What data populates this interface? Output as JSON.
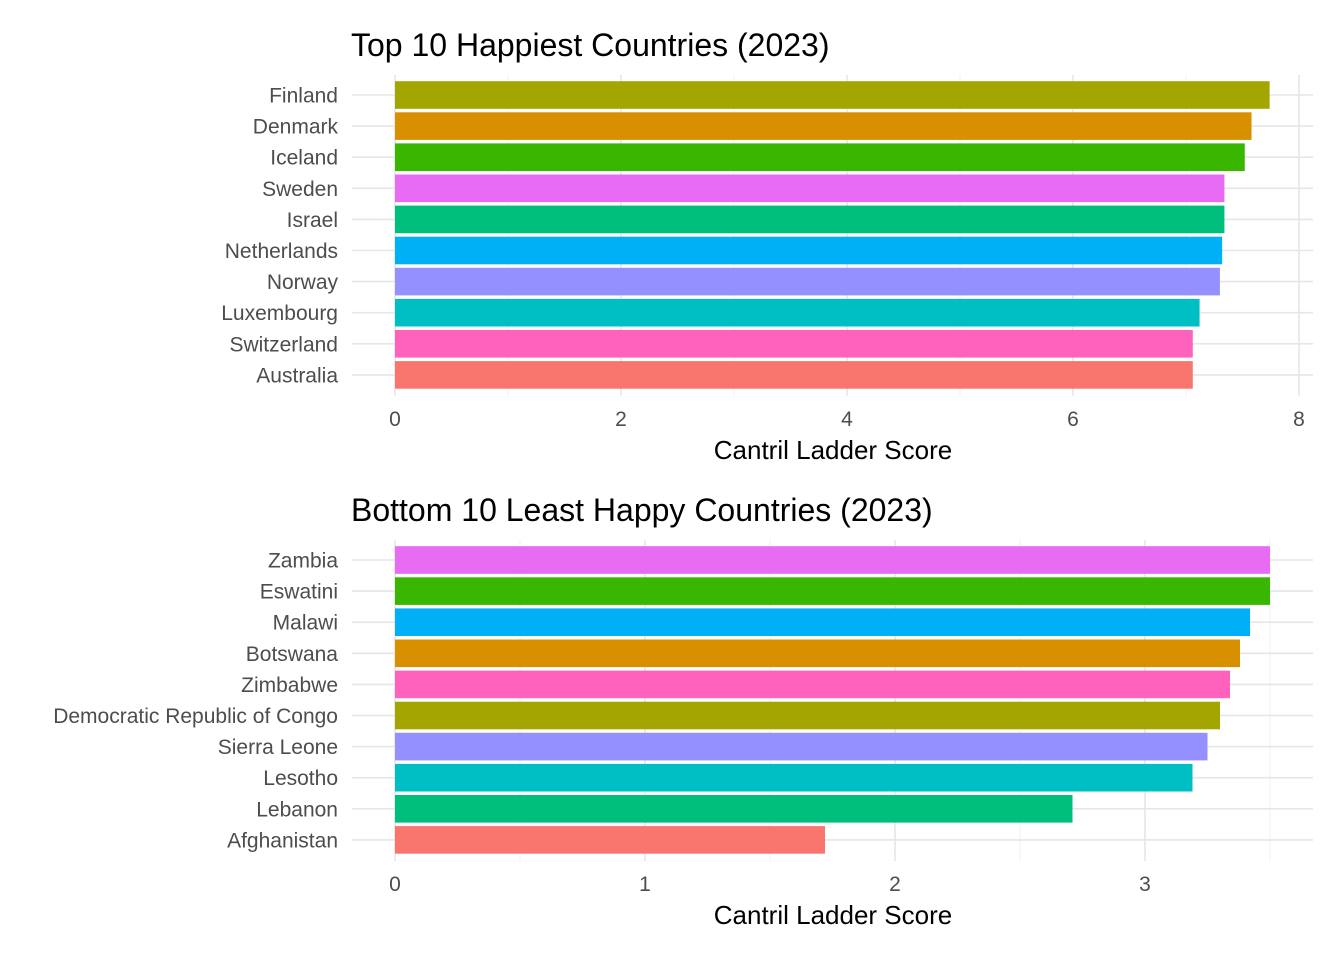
{
  "chart_data": [
    {
      "type": "bar",
      "orientation": "horizontal",
      "title": "Top 10 Happiest Countries (2023)",
      "xlabel": "Cantril Ladder Score",
      "ylabel": "",
      "xlim": [
        0,
        8.1
      ],
      "xticks": [
        "0",
        "2",
        "4",
        "6",
        "8"
      ],
      "grid": true,
      "legend": "none",
      "categories": [
        "Finland",
        "Denmark",
        "Iceland",
        "Sweden",
        "Israel",
        "Netherlands",
        "Norway",
        "Luxembourg",
        "Switzerland",
        "Australia"
      ],
      "values": [
        7.74,
        7.58,
        7.52,
        7.34,
        7.34,
        7.32,
        7.3,
        7.12,
        7.06,
        7.06
      ],
      "colors": [
        "#A3A500",
        "#D89000",
        "#39B600",
        "#E76BF3",
        "#00BF7D",
        "#00B0F6",
        "#9590FF",
        "#00BFC4",
        "#FF62BC",
        "#F8766D"
      ]
    },
    {
      "type": "bar",
      "orientation": "horizontal",
      "title": "Bottom 10 Least Happy Countries (2023)",
      "xlabel": "Cantril Ladder Score",
      "ylabel": "",
      "xlim": [
        0,
        3.68
      ],
      "xticks": [
        "0",
        "1",
        "2",
        "3"
      ],
      "grid": true,
      "legend": "none",
      "categories": [
        "Zambia",
        "Eswatini",
        "Malawi",
        "Botswana",
        "Zimbabwe",
        "Democratic Republic of Congo",
        "Sierra Leone",
        "Lesotho",
        "Lebanon",
        "Afghanistan"
      ],
      "values": [
        3.5,
        3.5,
        3.42,
        3.38,
        3.34,
        3.3,
        3.25,
        3.19,
        2.71,
        1.72
      ],
      "colors": [
        "#E76BF3",
        "#39B600",
        "#00B0F6",
        "#D89000",
        "#FF62BC",
        "#A3A500",
        "#9590FF",
        "#00BFC4",
        "#00BF7D",
        "#F8766D"
      ]
    }
  ]
}
